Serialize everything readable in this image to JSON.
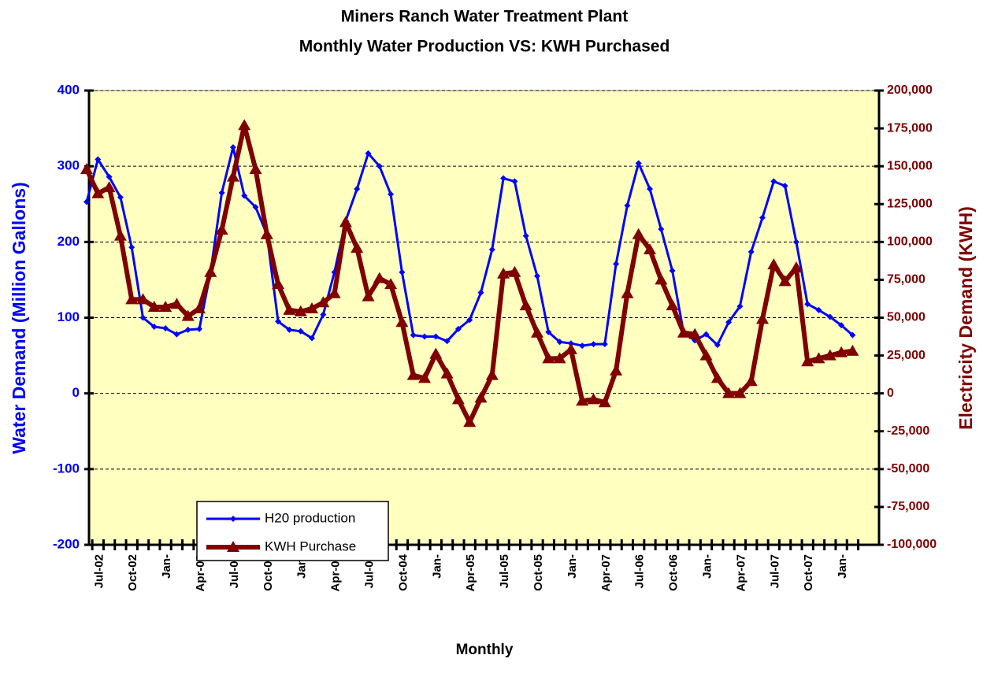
{
  "chart_data": {
    "type": "line",
    "title": "Miners Ranch Water Treatment Plant",
    "subtitle": "Monthly Water Production VS: KWH Purchased",
    "x_label": "Monthly",
    "y_label": "Water Demand (Million Gallons)",
    "y2_label": "Electricity Demand (KWH)",
    "categories": [
      null,
      "Jul-02",
      null,
      null,
      "Oct-02",
      null,
      null,
      "Jan-",
      null,
      null,
      "Apr-03",
      null,
      null,
      "Jul-03",
      null,
      null,
      "Oct-03",
      null,
      null,
      "Jan-",
      null,
      null,
      "Apr-04",
      null,
      null,
      "Jul-04",
      null,
      null,
      "Oct-04",
      null,
      null,
      "Jan-",
      null,
      null,
      "Apr-05",
      null,
      null,
      "Jul-05",
      null,
      null,
      "Oct-05",
      null,
      null,
      "Jan-",
      null,
      null,
      "Apr-07",
      null,
      null,
      "Jul-06",
      null,
      null,
      "Oct-06",
      null,
      null,
      "Jan-",
      null,
      null,
      "Apr-07",
      null,
      null,
      "Jul-07",
      null,
      null,
      "Oct-07",
      null,
      null,
      "Jan-",
      null
    ],
    "series": [
      {
        "name": "H20 production",
        "color": "#0000ff",
        "marker": "diamond",
        "values": [
          253,
          309,
          286,
          259,
          193,
          100,
          88,
          86,
          78,
          84,
          85,
          160,
          265,
          325,
          261,
          246,
          210,
          95,
          84,
          82,
          73,
          104,
          160,
          228,
          270,
          317,
          300,
          263,
          160,
          77,
          75,
          75,
          69,
          85,
          97,
          133,
          190,
          284,
          280,
          208,
          155,
          81,
          68,
          66,
          63,
          65,
          65,
          171,
          248,
          304,
          270,
          217,
          162,
          80,
          70,
          78,
          64,
          94,
          115,
          187,
          232,
          280,
          274,
          200,
          118,
          110,
          101,
          90,
          77
        ]
      },
      {
        "name": "KWH Purchase",
        "color": "#800000",
        "marker": "triangle",
        "axis": "y2",
        "values": [
          148000,
          132000,
          136000,
          104000,
          62000,
          62000,
          57000,
          57000,
          59000,
          51000,
          56000,
          80000,
          108000,
          143000,
          177000,
          148000,
          105000,
          72000,
          55000,
          54000,
          56000,
          60000,
          66000,
          113000,
          96000,
          64000,
          76000,
          72000,
          47000,
          12000,
          10000,
          26000,
          13000,
          -4000,
          -19000,
          -3000,
          12000,
          79000,
          80000,
          58000,
          40000,
          23000,
          23000,
          29000,
          -5000,
          -4000,
          -6000,
          15000,
          66000,
          105000,
          95000,
          75000,
          58000,
          40000,
          39000,
          25000,
          10000,
          0,
          0,
          8000,
          49000,
          85000,
          74000,
          83000,
          21000,
          23000,
          25000,
          27000,
          28000
        ]
      }
    ],
    "ylim": [
      -200,
      400
    ],
    "yticks": [
      -200,
      -100,
      0,
      100,
      200,
      300,
      400
    ],
    "y2lim": [
      -100000,
      200000
    ],
    "y2ticks": [
      {
        "value": -100000,
        "label": "-100,000"
      },
      {
        "value": -75000,
        "label": "-75,000"
      },
      {
        "value": -50000,
        "label": "-50,000"
      },
      {
        "value": -25000,
        "label": "-25,000"
      },
      {
        "value": 0,
        "label": "0"
      },
      {
        "value": 25000,
        "label": "25,000"
      },
      {
        "value": 50000,
        "label": "50,000"
      },
      {
        "value": 75000,
        "label": "75,000"
      },
      {
        "value": 100000,
        "label": "100,000"
      },
      {
        "value": 125000,
        "label": "125,000"
      },
      {
        "value": 150000,
        "label": "150,000"
      },
      {
        "value": 175000,
        "label": "175,000"
      },
      {
        "value": 200000,
        "label": "200,000"
      }
    ],
    "grid": true
  }
}
